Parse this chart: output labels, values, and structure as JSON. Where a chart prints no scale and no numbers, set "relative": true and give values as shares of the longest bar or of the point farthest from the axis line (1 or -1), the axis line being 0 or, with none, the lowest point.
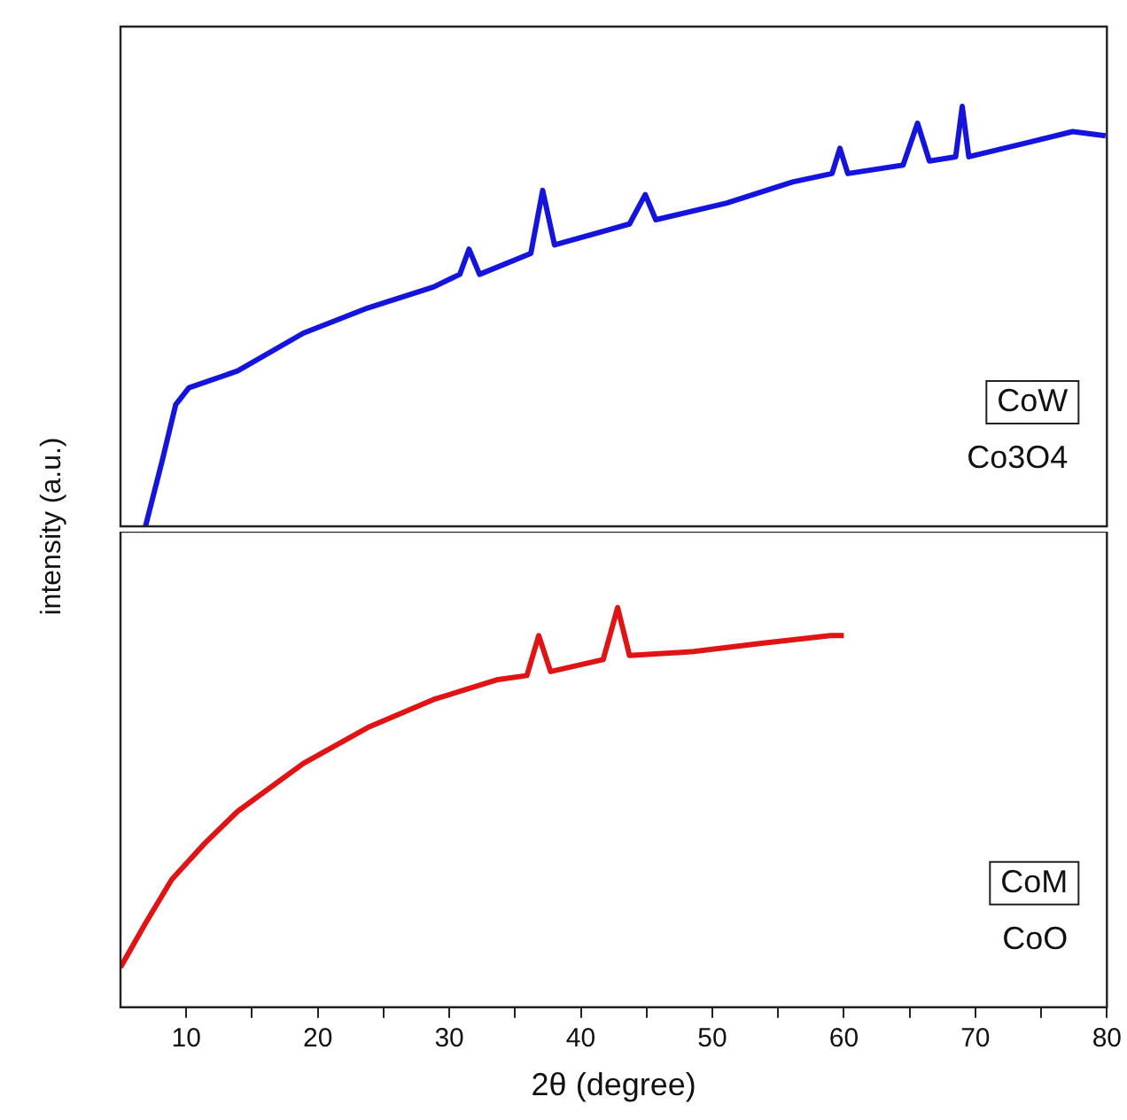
{
  "chart_data": [
    {
      "type": "line",
      "relative": true,
      "ylabel": "intensity (a.u.)",
      "xlim": [
        5,
        80
      ],
      "tick_labels": false,
      "annotations": [
        "CoW",
        "Co3O4"
      ],
      "x": [
        6.9,
        8.2,
        9.2,
        10.2,
        13.9,
        18.9,
        23.8,
        28.8,
        30.8,
        31.5,
        32.3,
        36.2,
        37.1,
        38.0,
        43.7,
        44.9,
        45.7,
        51.1,
        56.1,
        59.1,
        59.7,
        60.3,
        64.5,
        65.6,
        66.5,
        68.5,
        69.0,
        69.5,
        73.5,
        77.4,
        79.9
      ],
      "series": [
        {
          "color": "#1414dc",
          "values": [
            0,
            0.16,
            0.29,
            0.33,
            0.37,
            0.46,
            0.52,
            0.57,
            0.6,
            0.66,
            0.6,
            0.65,
            0.8,
            0.67,
            0.72,
            0.79,
            0.73,
            0.77,
            0.82,
            0.84,
            0.9,
            0.84,
            0.86,
            0.96,
            0.87,
            0.88,
            1,
            0.88,
            0.91,
            0.94,
            0.93
          ]
        }
      ]
    },
    {
      "type": "line",
      "relative": true,
      "xlabel": "2θ (degree)",
      "xlim": [
        5,
        80
      ],
      "tick_labels": "x",
      "annotations": [
        "CoM",
        "CoO"
      ],
      "xticks": [
        10,
        {
          "value": 15,
          "label": null
        },
        20,
        {
          "value": 25,
          "label": null
        },
        30,
        {
          "value": 35,
          "label": null
        },
        40,
        {
          "value": 45,
          "label": null
        },
        50,
        {
          "value": 55,
          "label": null
        },
        60,
        {
          "value": 65,
          "label": null
        },
        70,
        {
          "value": 75,
          "label": null
        },
        80
      ],
      "x": [
        5,
        6.9,
        8.9,
        11.4,
        13.9,
        18.9,
        23.8,
        28.8,
        33.7,
        35.9,
        36.8,
        37.7,
        41.7,
        42.8,
        43.7,
        48.6,
        53.6,
        59.0,
        60
      ],
      "series": [
        {
          "color": "#e01414",
          "values": [
            0.1,
            0.21,
            0.32,
            0.41,
            0.49,
            0.61,
            0.7,
            0.77,
            0.82,
            0.83,
            0.93,
            0.84,
            0.87,
            1,
            0.88,
            0.89,
            0.91,
            0.93,
            0.93
          ]
        }
      ]
    }
  ]
}
